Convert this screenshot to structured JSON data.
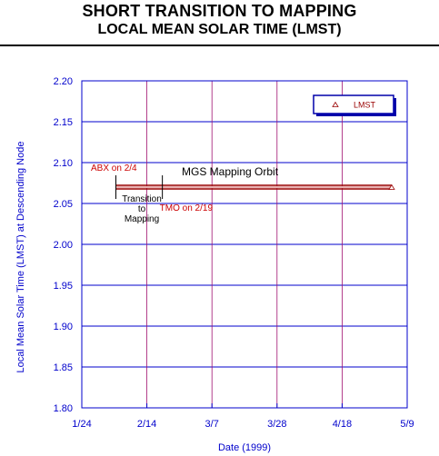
{
  "header": {
    "title": "SHORT TRANSITION TO MAPPING",
    "subtitle": "LOCAL MEAN SOLAR TIME (LMST)"
  },
  "chart_data": {
    "type": "line",
    "xlabel": "Date (1999)",
    "ylabel": "Local Mean Solar Time (LMST) at Descending Node",
    "x_ticks": [
      "1/24",
      "2/14",
      "3/7",
      "3/28",
      "4/18",
      "5/9"
    ],
    "x_range": [
      "1999-01-24",
      "1999-05-09"
    ],
    "y_ticks": [
      "1.80",
      "1.85",
      "1.90",
      "1.95",
      "2.00",
      "2.05",
      "2.10",
      "2.15",
      "2.20"
    ],
    "ylim": [
      1.8,
      2.2
    ],
    "grid": true,
    "legend": {
      "position": "top-right",
      "entries": [
        "LMST"
      ]
    },
    "series": [
      {
        "name": "LMST",
        "marker": "triangle",
        "x": [
          "1999-02-04",
          "1999-05-04"
        ],
        "y": [
          2.07,
          2.07
        ]
      }
    ],
    "annotations": [
      {
        "text": "ABX on 2/4",
        "date": "1999-02-04"
      },
      {
        "text": "TMO on 2/19",
        "date": "1999-02-19"
      },
      {
        "text": "MGS Mapping Orbit"
      },
      {
        "lines": [
          "Transition",
          "to",
          "Mapping"
        ]
      }
    ],
    "colors": {
      "axis": "#0000cc",
      "series": "#990000",
      "annotation": "#cc0000",
      "text": "#000000"
    }
  }
}
